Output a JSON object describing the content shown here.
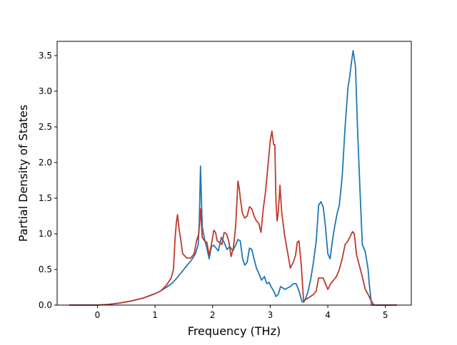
{
  "chart_data": {
    "type": "line",
    "title": "",
    "xlabel": "Frequency (THz)",
    "ylabel": "Partial Density of States",
    "xlim": [
      -0.7,
      5.45
    ],
    "ylim": [
      0.0,
      3.7
    ],
    "xticks": [
      0,
      1,
      2,
      3,
      4,
      5
    ],
    "yticks": [
      0.0,
      0.5,
      1.0,
      1.5,
      2.0,
      2.5,
      3.0,
      3.5
    ],
    "xtick_labels": [
      "0",
      "1",
      "2",
      "3",
      "4",
      "5"
    ],
    "ytick_labels": [
      "0.0",
      "0.5",
      "1.0",
      "1.5",
      "2.0",
      "2.5",
      "3.0",
      "3.5"
    ],
    "grid": false,
    "legend": false,
    "series": [
      {
        "color": "#1f77b4",
        "x": [
          -0.49,
          0.0,
          0.2,
          0.4,
          0.6,
          0.8,
          1.0,
          1.1,
          1.2,
          1.3,
          1.38,
          1.45,
          1.5,
          1.55,
          1.6,
          1.65,
          1.7,
          1.75,
          1.77,
          1.79,
          1.82,
          1.86,
          1.9,
          1.94,
          1.98,
          2.02,
          2.06,
          2.1,
          2.15,
          2.2,
          2.25,
          2.3,
          2.35,
          2.4,
          2.44,
          2.48,
          2.52,
          2.56,
          2.6,
          2.64,
          2.68,
          2.72,
          2.76,
          2.8,
          2.85,
          2.9,
          2.94,
          2.98,
          3.02,
          3.06,
          3.1,
          3.14,
          3.18,
          3.22,
          3.26,
          3.3,
          3.35,
          3.4,
          3.45,
          3.5,
          3.55,
          3.58,
          3.62,
          3.66,
          3.7,
          3.75,
          3.8,
          3.84,
          3.88,
          3.92,
          3.96,
          4.0,
          4.04,
          4.08,
          4.12,
          4.16,
          4.2,
          4.25,
          4.3,
          4.35,
          4.38,
          4.41,
          4.44,
          4.48,
          4.52,
          4.56,
          4.6,
          4.65,
          4.7,
          4.72,
          4.76,
          4.8,
          5.2
        ],
        "y": [
          0.0,
          0.0,
          0.01,
          0.03,
          0.06,
          0.1,
          0.16,
          0.2,
          0.25,
          0.31,
          0.38,
          0.45,
          0.5,
          0.55,
          0.6,
          0.65,
          0.72,
          0.85,
          1.2,
          1.95,
          1.1,
          0.92,
          0.8,
          0.65,
          0.82,
          0.84,
          0.8,
          0.76,
          0.95,
          0.88,
          0.78,
          0.82,
          0.76,
          0.84,
          0.92,
          0.9,
          0.65,
          0.56,
          0.6,
          0.8,
          0.78,
          0.65,
          0.52,
          0.45,
          0.35,
          0.4,
          0.3,
          0.32,
          0.25,
          0.2,
          0.12,
          0.15,
          0.26,
          0.24,
          0.22,
          0.24,
          0.26,
          0.3,
          0.3,
          0.2,
          0.05,
          0.04,
          0.1,
          0.2,
          0.35,
          0.6,
          0.9,
          1.4,
          1.45,
          1.38,
          1.1,
          0.72,
          0.65,
          0.9,
          1.1,
          1.28,
          1.4,
          1.8,
          2.5,
          3.05,
          3.2,
          3.4,
          3.57,
          3.35,
          2.4,
          1.6,
          0.85,
          0.75,
          0.5,
          0.3,
          0.0,
          0.0,
          0.0
        ]
      },
      {
        "color": "#c0392b",
        "x": [
          -0.49,
          0.0,
          0.2,
          0.4,
          0.6,
          0.8,
          1.0,
          1.1,
          1.2,
          1.28,
          1.32,
          1.35,
          1.37,
          1.39,
          1.42,
          1.45,
          1.48,
          1.55,
          1.62,
          1.68,
          1.72,
          1.76,
          1.79,
          1.82,
          1.86,
          1.9,
          1.94,
          1.98,
          2.02,
          2.05,
          2.08,
          2.12,
          2.16,
          2.2,
          2.24,
          2.28,
          2.32,
          2.36,
          2.4,
          2.44,
          2.46,
          2.48,
          2.52,
          2.56,
          2.6,
          2.64,
          2.68,
          2.72,
          2.76,
          2.8,
          2.84,
          2.88,
          2.92,
          2.96,
          3.0,
          3.03,
          3.06,
          3.08,
          3.1,
          3.12,
          3.14,
          3.17,
          3.2,
          3.25,
          3.3,
          3.35,
          3.4,
          3.44,
          3.47,
          3.5,
          3.54,
          3.58,
          3.62,
          3.66,
          3.7,
          3.75,
          3.8,
          3.84,
          3.88,
          3.92,
          3.96,
          4.0,
          4.05,
          4.1,
          4.15,
          4.2,
          4.25,
          4.3,
          4.35,
          4.4,
          4.43,
          4.46,
          4.5,
          4.55,
          4.6,
          4.65,
          4.7,
          4.74,
          4.8,
          5.2
        ],
        "y": [
          0.0,
          0.0,
          0.01,
          0.03,
          0.06,
          0.1,
          0.16,
          0.2,
          0.28,
          0.38,
          0.5,
          0.95,
          1.15,
          1.27,
          1.05,
          0.9,
          0.72,
          0.66,
          0.66,
          0.72,
          0.9,
          1.0,
          1.35,
          0.95,
          0.9,
          0.88,
          0.7,
          0.85,
          1.05,
          1.02,
          0.9,
          0.88,
          0.85,
          1.02,
          1.0,
          0.9,
          0.68,
          0.8,
          1.1,
          1.74,
          1.65,
          1.5,
          1.28,
          1.22,
          1.25,
          1.38,
          1.35,
          1.25,
          1.18,
          1.15,
          1.02,
          1.35,
          1.6,
          1.95,
          2.3,
          2.44,
          2.25,
          2.25,
          1.45,
          1.18,
          1.3,
          1.68,
          1.3,
          0.98,
          0.75,
          0.52,
          0.6,
          0.7,
          0.88,
          0.9,
          0.55,
          0.05,
          0.08,
          0.1,
          0.12,
          0.15,
          0.2,
          0.38,
          0.38,
          0.38,
          0.3,
          0.22,
          0.3,
          0.35,
          0.4,
          0.5,
          0.65,
          0.85,
          0.9,
          0.98,
          1.03,
          1.0,
          0.7,
          0.55,
          0.4,
          0.22,
          0.15,
          0.08,
          0.0,
          0.0
        ]
      }
    ]
  }
}
